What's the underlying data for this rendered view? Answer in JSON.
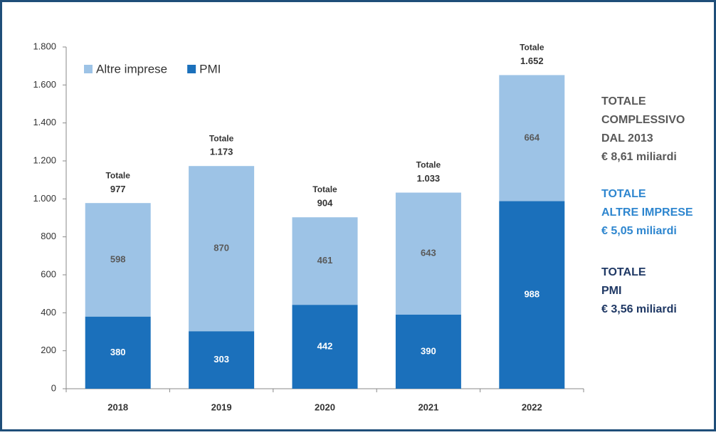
{
  "chart_data": {
    "type": "stacked_bar",
    "categories": [
      "2018",
      "2019",
      "2020",
      "2021",
      "2022"
    ],
    "series": [
      {
        "name": "PMI",
        "color": "#1b70bb",
        "values": [
          380,
          303,
          442,
          390,
          988
        ]
      },
      {
        "name": "Altre imprese",
        "color": "#9dc3e6",
        "values": [
          598,
          870,
          461,
          643,
          664
        ]
      }
    ],
    "total_caption": "Totale",
    "totals": [
      977,
      1173,
      904,
      1033,
      1652
    ],
    "total_value_labels": [
      "977",
      "1.173",
      "904",
      "1.033",
      "1.652"
    ],
    "ylim": [
      0,
      1800
    ],
    "yticks": [
      0,
      200,
      400,
      600,
      800,
      {
        "value": 1000,
        "label": "1.000"
      },
      {
        "value": 1200,
        "label": "1.200"
      },
      {
        "value": 1400,
        "label": "1.400"
      },
      {
        "value": 1600,
        "label": "1.600"
      },
      {
        "value": 1800,
        "label": "1.800"
      }
    ],
    "grid": false,
    "legend": "top-left",
    "annotations": [
      {
        "lines": [
          "TOTALE",
          "COMPLESSIVO",
          "DAL 2013",
          "€ 8,61 miliardi"
        ],
        "color": "#595959"
      },
      {
        "lines": [
          "TOTALE",
          "ALTRE IMPRESE",
          "€ 5,05 miliardi"
        ],
        "color": "#2e86cf"
      },
      {
        "lines": [
          "TOTALE",
          "PMI",
          "€ 3,56 miliardi"
        ],
        "color": "#1f3864"
      }
    ]
  }
}
